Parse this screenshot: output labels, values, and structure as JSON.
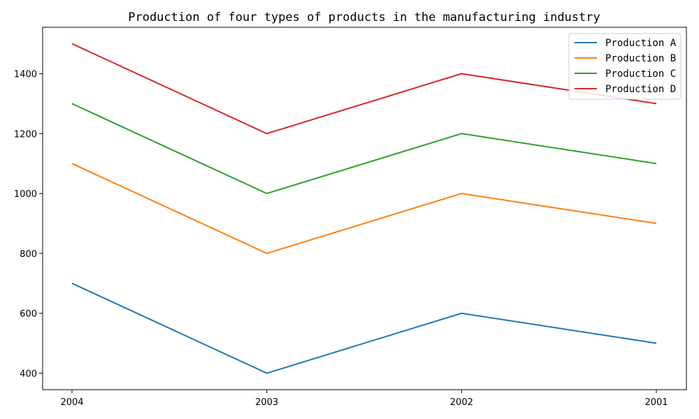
{
  "chart_data": {
    "type": "line",
    "title": "Production of four types of products in the manufacturing industry",
    "xlabel": "",
    "ylabel": "",
    "categories": [
      "2004",
      "2003",
      "2002",
      "2001"
    ],
    "series": [
      {
        "name": "Production A",
        "color": "#1f77b4",
        "values": [
          700,
          400,
          600,
          500
        ]
      },
      {
        "name": "Production B",
        "color": "#ff7f0e",
        "values": [
          1100,
          800,
          1000,
          900
        ]
      },
      {
        "name": "Production C",
        "color": "#2ca02c",
        "values": [
          1300,
          1000,
          1200,
          1100
        ]
      },
      {
        "name": "Production D",
        "color": "#d62728",
        "values": [
          1500,
          1200,
          1400,
          1300
        ]
      }
    ],
    "ylim": [
      345,
      1555
    ],
    "yticks": [
      400,
      600,
      800,
      1000,
      1200,
      1400
    ],
    "grid": false,
    "legend_position": "top-right"
  }
}
